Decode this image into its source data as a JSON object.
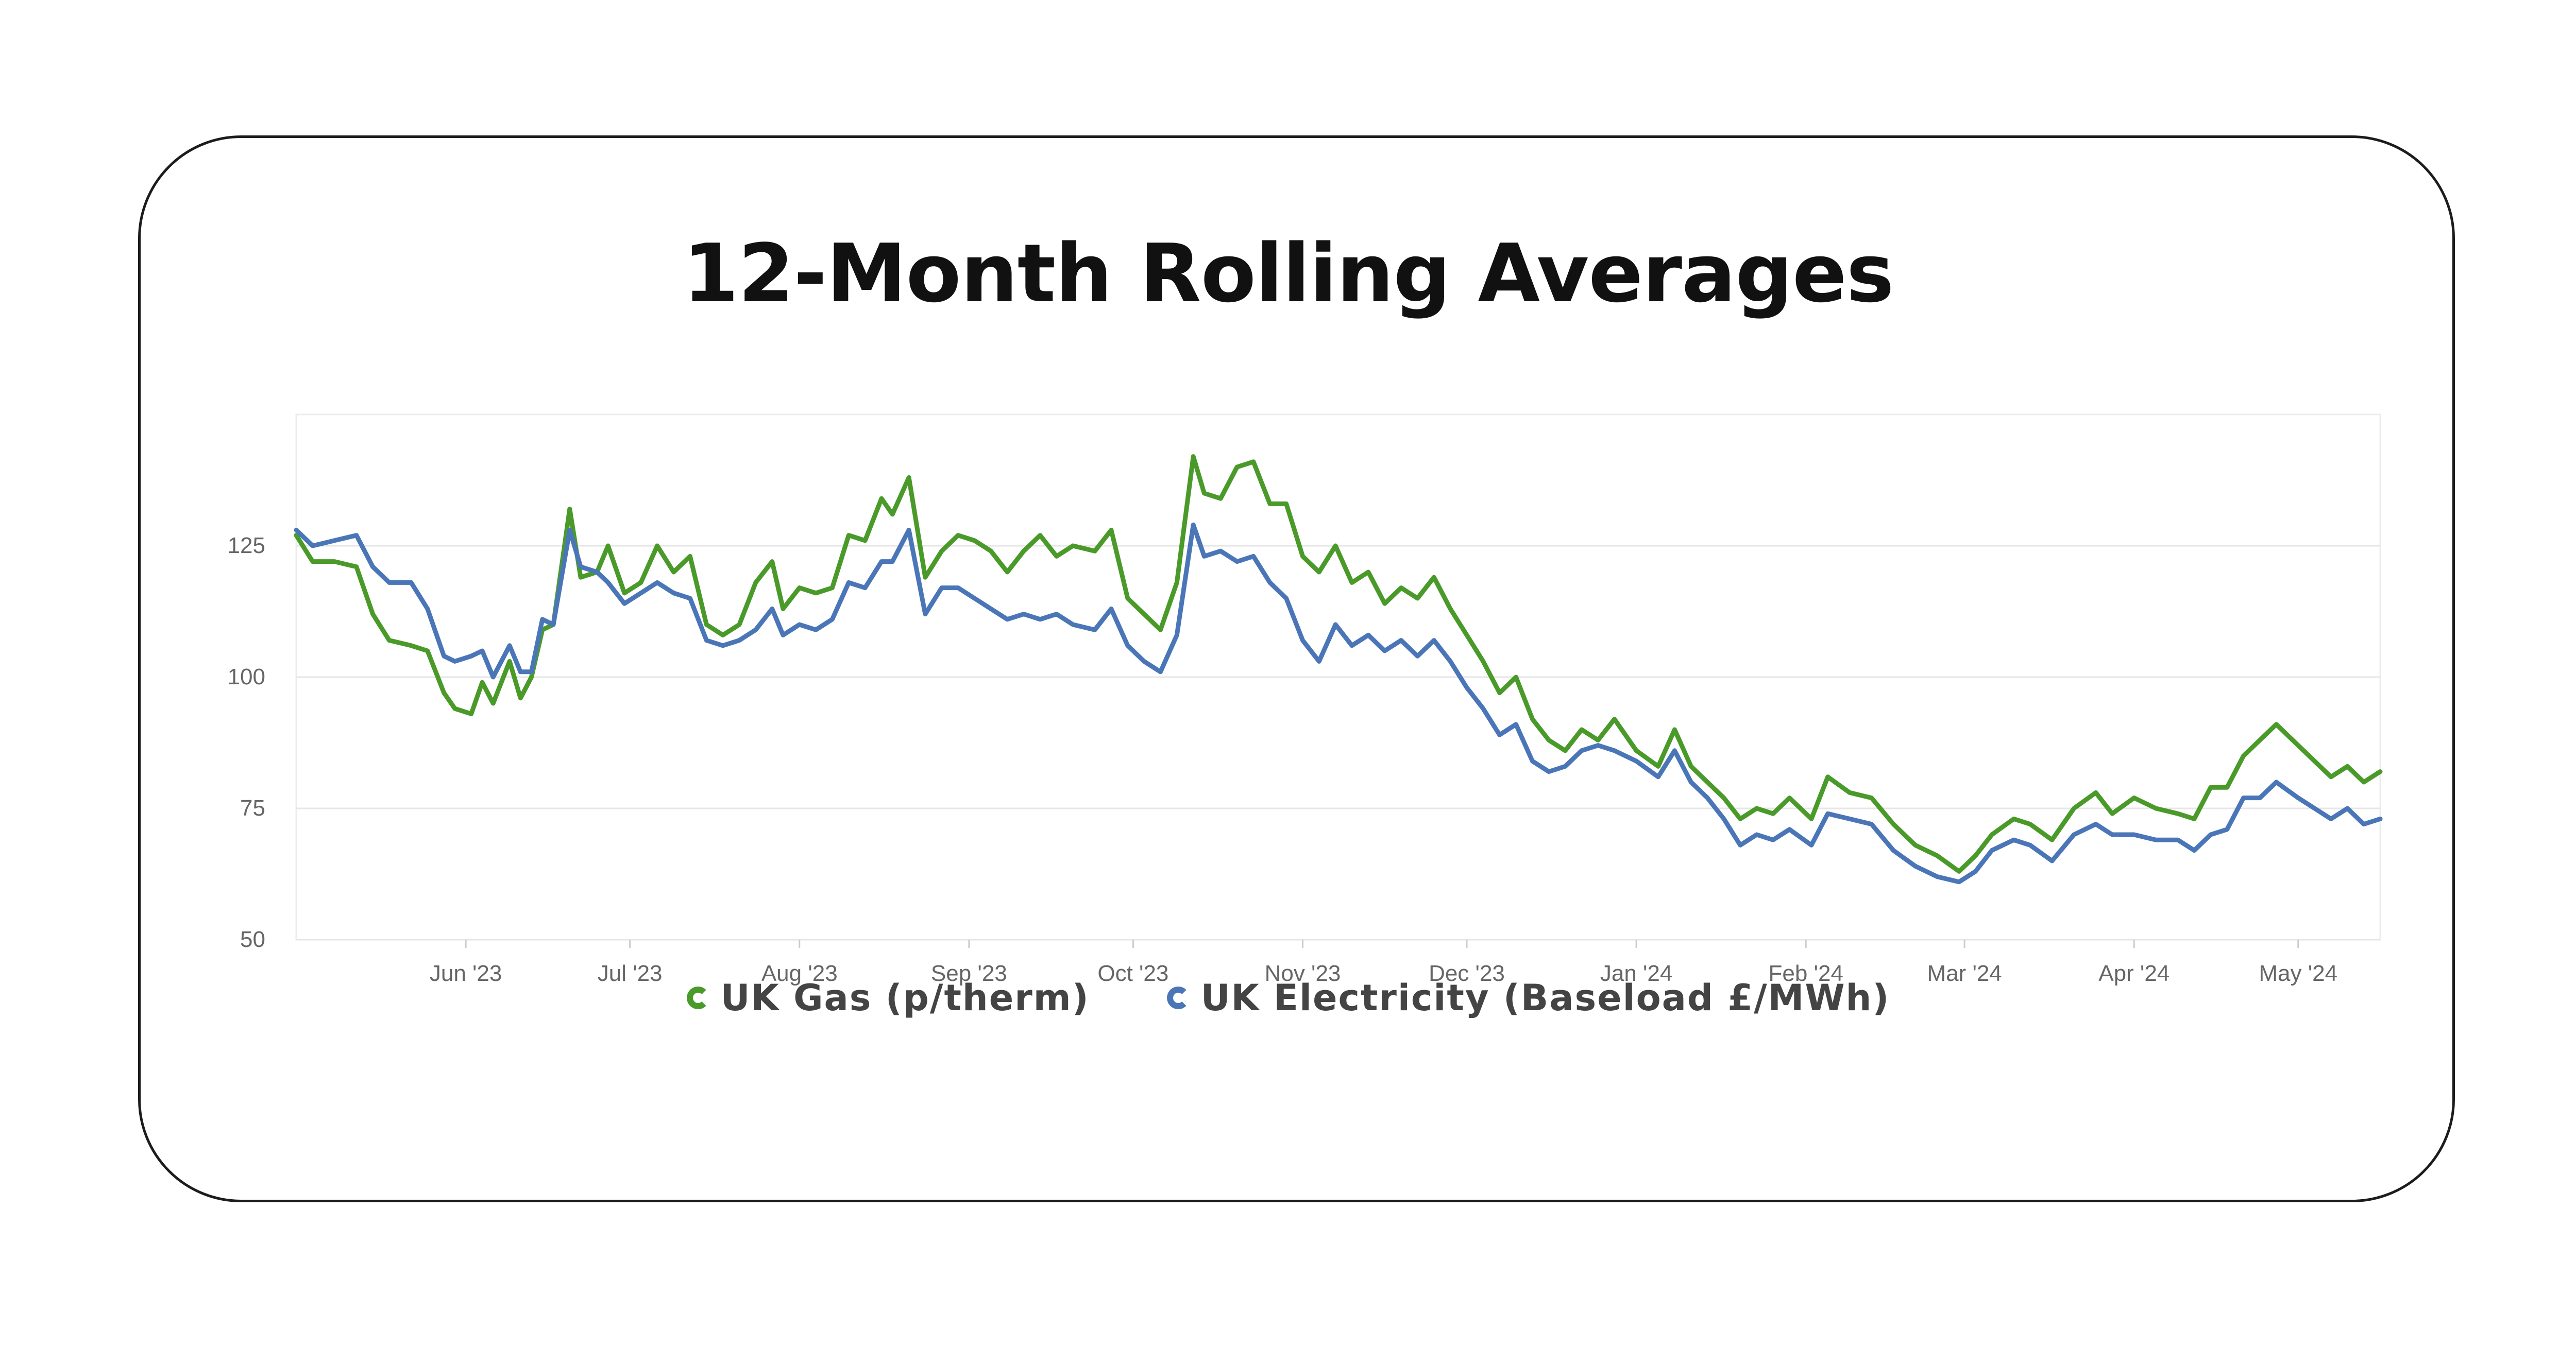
{
  "title": "12-Month Rolling Averages",
  "colors": {
    "gas": "#4a9a2a",
    "electricity": "#4a76b8",
    "grid": "#e6e6e6",
    "border": "#1c1c1c"
  },
  "legend": [
    {
      "label": "UK Gas (p/therm)",
      "color": "#4a9a2a",
      "icon": "ring-icon"
    },
    {
      "label": "UK Electricity (Baseload £/MWh)",
      "color": "#4a76b8",
      "icon": "ring-icon"
    }
  ],
  "chart_data": {
    "type": "line",
    "title": "12-Month Rolling Averages",
    "ylim": [
      50,
      150
    ],
    "yticks": [
      50,
      75,
      100,
      125
    ],
    "xlim": [
      "2023-05-01",
      "2024-05-16"
    ],
    "xticks": [
      {
        "date": "2023-06-01",
        "label": "Jun '23"
      },
      {
        "date": "2023-07-01",
        "label": "Jul '23"
      },
      {
        "date": "2023-08-01",
        "label": "Aug '23"
      },
      {
        "date": "2023-09-01",
        "label": "Sep '23"
      },
      {
        "date": "2023-10-01",
        "label": "Oct '23"
      },
      {
        "date": "2023-11-01",
        "label": "Nov '23"
      },
      {
        "date": "2023-12-01",
        "label": "Dec '23"
      },
      {
        "date": "2024-01-01",
        "label": "Jan '24"
      },
      {
        "date": "2024-02-01",
        "label": "Feb '24"
      },
      {
        "date": "2024-03-01",
        "label": "Mar '24"
      },
      {
        "date": "2024-04-01",
        "label": "Apr '24"
      },
      {
        "date": "2024-05-01",
        "label": "May '24"
      }
    ],
    "grid": true,
    "legend_position": "bottom",
    "series": [
      {
        "name": "UK Gas (p/therm)",
        "color": "#4a9a2a",
        "points": [
          [
            "2023-05-01",
            127
          ],
          [
            "2023-05-04",
            122
          ],
          [
            "2023-05-08",
            122
          ],
          [
            "2023-05-12",
            121
          ],
          [
            "2023-05-15",
            112
          ],
          [
            "2023-05-18",
            107
          ],
          [
            "2023-05-22",
            106
          ],
          [
            "2023-05-25",
            105
          ],
          [
            "2023-05-28",
            97
          ],
          [
            "2023-05-30",
            94
          ],
          [
            "2023-06-02",
            93
          ],
          [
            "2023-06-04",
            99
          ],
          [
            "2023-06-06",
            95
          ],
          [
            "2023-06-09",
            103
          ],
          [
            "2023-06-11",
            96
          ],
          [
            "2023-06-13",
            100
          ],
          [
            "2023-06-15",
            109
          ],
          [
            "2023-06-17",
            110
          ],
          [
            "2023-06-20",
            132
          ],
          [
            "2023-06-22",
            119
          ],
          [
            "2023-06-25",
            120
          ],
          [
            "2023-06-27",
            125
          ],
          [
            "2023-06-30",
            116
          ],
          [
            "2023-07-03",
            118
          ],
          [
            "2023-07-06",
            125
          ],
          [
            "2023-07-09",
            120
          ],
          [
            "2023-07-12",
            123
          ],
          [
            "2023-07-15",
            110
          ],
          [
            "2023-07-18",
            108
          ],
          [
            "2023-07-21",
            110
          ],
          [
            "2023-07-24",
            118
          ],
          [
            "2023-07-27",
            122
          ],
          [
            "2023-07-29",
            113
          ],
          [
            "2023-08-01",
            117
          ],
          [
            "2023-08-04",
            116
          ],
          [
            "2023-08-07",
            117
          ],
          [
            "2023-08-10",
            127
          ],
          [
            "2023-08-13",
            126
          ],
          [
            "2023-08-16",
            134
          ],
          [
            "2023-08-18",
            131
          ],
          [
            "2023-08-21",
            138
          ],
          [
            "2023-08-24",
            119
          ],
          [
            "2023-08-27",
            124
          ],
          [
            "2023-08-30",
            127
          ],
          [
            "2023-09-02",
            126
          ],
          [
            "2023-09-05",
            124
          ],
          [
            "2023-09-08",
            120
          ],
          [
            "2023-09-11",
            124
          ],
          [
            "2023-09-14",
            127
          ],
          [
            "2023-09-17",
            123
          ],
          [
            "2023-09-20",
            125
          ],
          [
            "2023-09-24",
            124
          ],
          [
            "2023-09-27",
            128
          ],
          [
            "2023-09-30",
            115
          ],
          [
            "2023-10-03",
            112
          ],
          [
            "2023-10-06",
            109
          ],
          [
            "2023-10-09",
            118
          ],
          [
            "2023-10-12",
            142
          ],
          [
            "2023-10-14",
            135
          ],
          [
            "2023-10-17",
            134
          ],
          [
            "2023-10-20",
            140
          ],
          [
            "2023-10-23",
            141
          ],
          [
            "2023-10-26",
            133
          ],
          [
            "2023-10-29",
            133
          ],
          [
            "2023-11-01",
            123
          ],
          [
            "2023-11-04",
            120
          ],
          [
            "2023-11-07",
            125
          ],
          [
            "2023-11-10",
            118
          ],
          [
            "2023-11-13",
            120
          ],
          [
            "2023-11-16",
            114
          ],
          [
            "2023-11-19",
            117
          ],
          [
            "2023-11-22",
            115
          ],
          [
            "2023-11-25",
            119
          ],
          [
            "2023-11-28",
            113
          ],
          [
            "2023-12-01",
            108
          ],
          [
            "2023-12-04",
            103
          ],
          [
            "2023-12-07",
            97
          ],
          [
            "2023-12-10",
            100
          ],
          [
            "2023-12-13",
            92
          ],
          [
            "2023-12-16",
            88
          ],
          [
            "2023-12-19",
            86
          ],
          [
            "2023-12-22",
            90
          ],
          [
            "2023-12-25",
            88
          ],
          [
            "2023-12-28",
            92
          ],
          [
            "2024-01-01",
            86
          ],
          [
            "2024-01-05",
            83
          ],
          [
            "2024-01-08",
            90
          ],
          [
            "2024-01-11",
            83
          ],
          [
            "2024-01-14",
            80
          ],
          [
            "2024-01-17",
            77
          ],
          [
            "2024-01-20",
            73
          ],
          [
            "2024-01-23",
            75
          ],
          [
            "2024-01-26",
            74
          ],
          [
            "2024-01-29",
            77
          ],
          [
            "2024-02-02",
            73
          ],
          [
            "2024-02-05",
            81
          ],
          [
            "2024-02-09",
            78
          ],
          [
            "2024-02-13",
            77
          ],
          [
            "2024-02-17",
            72
          ],
          [
            "2024-02-21",
            68
          ],
          [
            "2024-02-25",
            66
          ],
          [
            "2024-02-29",
            63
          ],
          [
            "2024-03-03",
            66
          ],
          [
            "2024-03-06",
            70
          ],
          [
            "2024-03-10",
            73
          ],
          [
            "2024-03-13",
            72
          ],
          [
            "2024-03-17",
            69
          ],
          [
            "2024-03-21",
            75
          ],
          [
            "2024-03-25",
            78
          ],
          [
            "2024-03-28",
            74
          ],
          [
            "2024-04-01",
            77
          ],
          [
            "2024-04-05",
            75
          ],
          [
            "2024-04-09",
            74
          ],
          [
            "2024-04-12",
            73
          ],
          [
            "2024-04-15",
            79
          ],
          [
            "2024-04-18",
            79
          ],
          [
            "2024-04-21",
            85
          ],
          [
            "2024-04-24",
            88
          ],
          [
            "2024-04-27",
            91
          ],
          [
            "2024-05-01",
            87
          ],
          [
            "2024-05-04",
            84
          ],
          [
            "2024-05-07",
            81
          ],
          [
            "2024-05-10",
            83
          ],
          [
            "2024-05-13",
            80
          ],
          [
            "2024-05-16",
            82
          ]
        ]
      },
      {
        "name": "UK Electricity (Baseload £/MWh)",
        "color": "#4a76b8",
        "points": [
          [
            "2023-05-01",
            128
          ],
          [
            "2023-05-04",
            125
          ],
          [
            "2023-05-08",
            126
          ],
          [
            "2023-05-12",
            127
          ],
          [
            "2023-05-15",
            121
          ],
          [
            "2023-05-18",
            118
          ],
          [
            "2023-05-22",
            118
          ],
          [
            "2023-05-25",
            113
          ],
          [
            "2023-05-28",
            104
          ],
          [
            "2023-05-30",
            103
          ],
          [
            "2023-06-02",
            104
          ],
          [
            "2023-06-04",
            105
          ],
          [
            "2023-06-06",
            100
          ],
          [
            "2023-06-09",
            106
          ],
          [
            "2023-06-11",
            101
          ],
          [
            "2023-06-13",
            101
          ],
          [
            "2023-06-15",
            111
          ],
          [
            "2023-06-17",
            110
          ],
          [
            "2023-06-20",
            128
          ],
          [
            "2023-06-22",
            121
          ],
          [
            "2023-06-25",
            120
          ],
          [
            "2023-06-27",
            118
          ],
          [
            "2023-06-30",
            114
          ],
          [
            "2023-07-03",
            116
          ],
          [
            "2023-07-06",
            118
          ],
          [
            "2023-07-09",
            116
          ],
          [
            "2023-07-12",
            115
          ],
          [
            "2023-07-15",
            107
          ],
          [
            "2023-07-18",
            106
          ],
          [
            "2023-07-21",
            107
          ],
          [
            "2023-07-24",
            109
          ],
          [
            "2023-07-27",
            113
          ],
          [
            "2023-07-29",
            108
          ],
          [
            "2023-08-01",
            110
          ],
          [
            "2023-08-04",
            109
          ],
          [
            "2023-08-07",
            111
          ],
          [
            "2023-08-10",
            118
          ],
          [
            "2023-08-13",
            117
          ],
          [
            "2023-08-16",
            122
          ],
          [
            "2023-08-18",
            122
          ],
          [
            "2023-08-21",
            128
          ],
          [
            "2023-08-24",
            112
          ],
          [
            "2023-08-27",
            117
          ],
          [
            "2023-08-30",
            117
          ],
          [
            "2023-09-02",
            115
          ],
          [
            "2023-09-05",
            113
          ],
          [
            "2023-09-08",
            111
          ],
          [
            "2023-09-11",
            112
          ],
          [
            "2023-09-14",
            111
          ],
          [
            "2023-09-17",
            112
          ],
          [
            "2023-09-20",
            110
          ],
          [
            "2023-09-24",
            109
          ],
          [
            "2023-09-27",
            113
          ],
          [
            "2023-09-30",
            106
          ],
          [
            "2023-10-03",
            103
          ],
          [
            "2023-10-06",
            101
          ],
          [
            "2023-10-09",
            108
          ],
          [
            "2023-10-12",
            129
          ],
          [
            "2023-10-14",
            123
          ],
          [
            "2023-10-17",
            124
          ],
          [
            "2023-10-20",
            122
          ],
          [
            "2023-10-23",
            123
          ],
          [
            "2023-10-26",
            118
          ],
          [
            "2023-10-29",
            115
          ],
          [
            "2023-11-01",
            107
          ],
          [
            "2023-11-04",
            103
          ],
          [
            "2023-11-07",
            110
          ],
          [
            "2023-11-10",
            106
          ],
          [
            "2023-11-13",
            108
          ],
          [
            "2023-11-16",
            105
          ],
          [
            "2023-11-19",
            107
          ],
          [
            "2023-11-22",
            104
          ],
          [
            "2023-11-25",
            107
          ],
          [
            "2023-11-28",
            103
          ],
          [
            "2023-12-01",
            98
          ],
          [
            "2023-12-04",
            94
          ],
          [
            "2023-12-07",
            89
          ],
          [
            "2023-12-10",
            91
          ],
          [
            "2023-12-13",
            84
          ],
          [
            "2023-12-16",
            82
          ],
          [
            "2023-12-19",
            83
          ],
          [
            "2023-12-22",
            86
          ],
          [
            "2023-12-25",
            87
          ],
          [
            "2023-12-28",
            86
          ],
          [
            "2024-01-01",
            84
          ],
          [
            "2024-01-05",
            81
          ],
          [
            "2024-01-08",
            86
          ],
          [
            "2024-01-11",
            80
          ],
          [
            "2024-01-14",
            77
          ],
          [
            "2024-01-17",
            73
          ],
          [
            "2024-01-20",
            68
          ],
          [
            "2024-01-23",
            70
          ],
          [
            "2024-01-26",
            69
          ],
          [
            "2024-01-29",
            71
          ],
          [
            "2024-02-02",
            68
          ],
          [
            "2024-02-05",
            74
          ],
          [
            "2024-02-09",
            73
          ],
          [
            "2024-02-13",
            72
          ],
          [
            "2024-02-17",
            67
          ],
          [
            "2024-02-21",
            64
          ],
          [
            "2024-02-25",
            62
          ],
          [
            "2024-02-29",
            61
          ],
          [
            "2024-03-03",
            63
          ],
          [
            "2024-03-06",
            67
          ],
          [
            "2024-03-10",
            69
          ],
          [
            "2024-03-13",
            68
          ],
          [
            "2024-03-17",
            65
          ],
          [
            "2024-03-21",
            70
          ],
          [
            "2024-03-25",
            72
          ],
          [
            "2024-03-28",
            70
          ],
          [
            "2024-04-01",
            70
          ],
          [
            "2024-04-05",
            69
          ],
          [
            "2024-04-09",
            69
          ],
          [
            "2024-04-12",
            67
          ],
          [
            "2024-04-15",
            70
          ],
          [
            "2024-04-18",
            71
          ],
          [
            "2024-04-21",
            77
          ],
          [
            "2024-04-24",
            77
          ],
          [
            "2024-04-27",
            80
          ],
          [
            "2024-05-01",
            77
          ],
          [
            "2024-05-04",
            75
          ],
          [
            "2024-05-07",
            73
          ],
          [
            "2024-05-10",
            75
          ],
          [
            "2024-05-13",
            72
          ],
          [
            "2024-05-16",
            73
          ]
        ]
      }
    ]
  }
}
